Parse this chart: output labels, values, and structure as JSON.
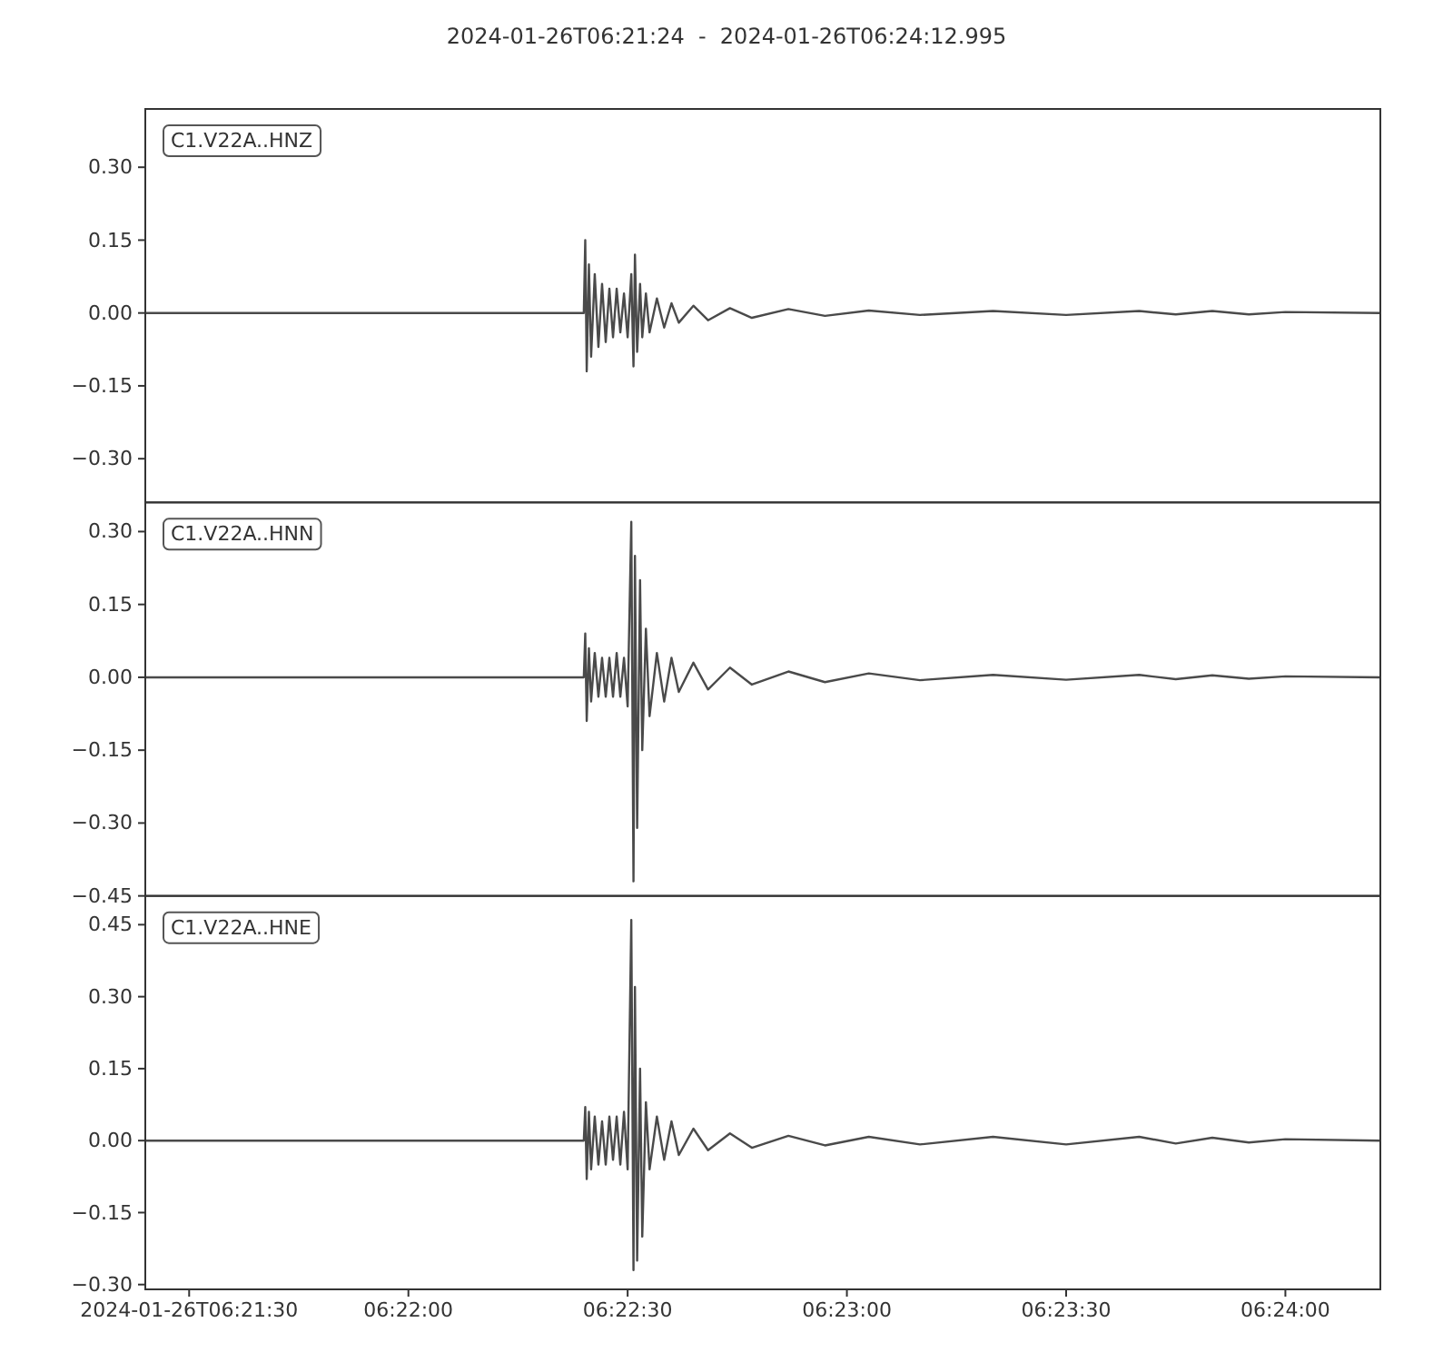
{
  "chart_data": [
    {
      "type": "line",
      "title": "2024-01-26T06:21:24  -  2024-01-26T06:24:12.995",
      "annotations": [
        "C1.V22A..HNZ"
      ],
      "tick_labels": "y",
      "x": [
        "2024-01-26T06:21:24",
        "2024-01-26T06:22:24",
        "2024-01-26T06:22:24.2",
        "2024-01-26T06:22:24.4",
        "2024-01-26T06:22:24.7",
        "2024-01-26T06:22:25",
        "2024-01-26T06:22:25.5",
        "2024-01-26T06:22:26",
        "2024-01-26T06:22:26.5",
        "2024-01-26T06:22:27",
        "2024-01-26T06:22:27.5",
        "2024-01-26T06:22:28",
        "2024-01-26T06:22:28.5",
        "2024-01-26T06:22:29",
        "2024-01-26T06:22:29.5",
        "2024-01-26T06:22:30",
        "2024-01-26T06:22:30.5",
        "2024-01-26T06:22:30.8",
        "2024-01-26T06:22:31",
        "2024-01-26T06:22:31.3",
        "2024-01-26T06:22:31.7",
        "2024-01-26T06:22:32",
        "2024-01-26T06:22:32.5",
        "2024-01-26T06:22:33",
        "2024-01-26T06:22:34",
        "2024-01-26T06:22:35",
        "2024-01-26T06:22:36",
        "2024-01-26T06:22:37",
        "2024-01-26T06:22:39",
        "2024-01-26T06:22:41",
        "2024-01-26T06:22:44",
        "2024-01-26T06:22:47",
        "2024-01-26T06:22:52",
        "2024-01-26T06:22:57",
        "2024-01-26T06:23:03",
        "2024-01-26T06:23:10",
        "2024-01-26T06:23:20",
        "2024-01-26T06:23:30",
        "2024-01-26T06:23:40",
        "2024-01-26T06:23:45",
        "2024-01-26T06:23:50",
        "2024-01-26T06:23:55",
        "2024-01-26T06:24:00",
        "2024-01-26T06:24:12.995"
      ],
      "series": [
        {
          "color": "#4a4a4a",
          "values": [
            0,
            0,
            0.15,
            -0.12,
            0.1,
            -0.09,
            0.08,
            -0.07,
            0.06,
            -0.06,
            0.05,
            -0.05,
            0.05,
            -0.04,
            0.04,
            -0.05,
            0.08,
            -0.11,
            0.12,
            -0.08,
            0.06,
            -0.05,
            0.04,
            -0.04,
            0.03,
            -0.03,
            0.02,
            -0.02,
            0.015,
            -0.015,
            0.01,
            -0.01,
            0.008,
            -0.006,
            0.005,
            -0.004,
            0.004,
            -0.004,
            0.004,
            -0.003,
            0.004,
            -0.003,
            0.002,
            0
          ]
        }
      ],
      "xlim": [
        "2024-01-26T06:21:24",
        "2024-01-26T06:24:12.995"
      ],
      "xticks": [
        {
          "value": "2024-01-26T06:21:30",
          "label": null
        },
        {
          "value": "2024-01-26T06:22:00",
          "label": null
        },
        {
          "value": "2024-01-26T06:22:30",
          "label": null
        },
        {
          "value": "2024-01-26T06:23:00",
          "label": null
        },
        {
          "value": "2024-01-26T06:23:30",
          "label": null
        },
        {
          "value": "2024-01-26T06:24:00",
          "label": null
        }
      ],
      "ylim": [
        -0.39,
        0.42
      ],
      "yticks": [
        {
          "value": -0.3,
          "label": "−0.30"
        },
        {
          "value": -0.15,
          "label": "−0.15"
        },
        {
          "value": 0,
          "label": "0.00"
        },
        {
          "value": 0.15,
          "label": "0.15"
        },
        {
          "value": 0.3,
          "label": "0.30"
        }
      ]
    },
    {
      "type": "line",
      "annotations": [
        "C1.V22A..HNN"
      ],
      "tick_labels": "y",
      "x": [
        "2024-01-26T06:21:24",
        "2024-01-26T06:22:24",
        "2024-01-26T06:22:24.2",
        "2024-01-26T06:22:24.4",
        "2024-01-26T06:22:24.7",
        "2024-01-26T06:22:25",
        "2024-01-26T06:22:25.5",
        "2024-01-26T06:22:26",
        "2024-01-26T06:22:26.5",
        "2024-01-26T06:22:27",
        "2024-01-26T06:22:27.5",
        "2024-01-26T06:22:28",
        "2024-01-26T06:22:28.5",
        "2024-01-26T06:22:29",
        "2024-01-26T06:22:29.5",
        "2024-01-26T06:22:30",
        "2024-01-26T06:22:30.5",
        "2024-01-26T06:22:30.8",
        "2024-01-26T06:22:31",
        "2024-01-26T06:22:31.3",
        "2024-01-26T06:22:31.7",
        "2024-01-26T06:22:32",
        "2024-01-26T06:22:32.5",
        "2024-01-26T06:22:33",
        "2024-01-26T06:22:34",
        "2024-01-26T06:22:35",
        "2024-01-26T06:22:36",
        "2024-01-26T06:22:37",
        "2024-01-26T06:22:39",
        "2024-01-26T06:22:41",
        "2024-01-26T06:22:44",
        "2024-01-26T06:22:47",
        "2024-01-26T06:22:52",
        "2024-01-26T06:22:57",
        "2024-01-26T06:23:03",
        "2024-01-26T06:23:10",
        "2024-01-26T06:23:20",
        "2024-01-26T06:23:30",
        "2024-01-26T06:23:40",
        "2024-01-26T06:23:45",
        "2024-01-26T06:23:50",
        "2024-01-26T06:23:55",
        "2024-01-26T06:24:00",
        "2024-01-26T06:24:12.995"
      ],
      "series": [
        {
          "color": "#4a4a4a",
          "values": [
            0,
            0,
            0.09,
            -0.09,
            0.06,
            -0.05,
            0.05,
            -0.04,
            0.04,
            -0.04,
            0.04,
            -0.04,
            0.05,
            -0.04,
            0.04,
            -0.06,
            0.32,
            -0.42,
            0.25,
            -0.31,
            0.2,
            -0.15,
            0.1,
            -0.08,
            0.05,
            -0.05,
            0.04,
            -0.03,
            0.03,
            -0.025,
            0.02,
            -0.015,
            0.012,
            -0.01,
            0.008,
            -0.006,
            0.005,
            -0.005,
            0.005,
            -0.004,
            0.004,
            -0.003,
            0.002,
            0
          ]
        }
      ],
      "xlim": [
        "2024-01-26T06:21:24",
        "2024-01-26T06:24:12.995"
      ],
      "xticks": [
        {
          "value": "2024-01-26T06:21:30",
          "label": null
        },
        {
          "value": "2024-01-26T06:22:00",
          "label": null
        },
        {
          "value": "2024-01-26T06:22:30",
          "label": null
        },
        {
          "value": "2024-01-26T06:23:00",
          "label": null
        },
        {
          "value": "2024-01-26T06:23:30",
          "label": null
        },
        {
          "value": "2024-01-26T06:24:00",
          "label": null
        }
      ],
      "ylim": [
        -0.45,
        0.36
      ],
      "yticks": [
        {
          "value": -0.45,
          "label": "−0.45"
        },
        {
          "value": -0.3,
          "label": "−0.30"
        },
        {
          "value": -0.15,
          "label": "−0.15"
        },
        {
          "value": 0,
          "label": "0.00"
        },
        {
          "value": 0.15,
          "label": "0.15"
        },
        {
          "value": 0.3,
          "label": "0.30"
        }
      ]
    },
    {
      "type": "line",
      "annotations": [
        "C1.V22A..HNE"
      ],
      "x": [
        "2024-01-26T06:21:24",
        "2024-01-26T06:22:24",
        "2024-01-26T06:22:24.2",
        "2024-01-26T06:22:24.4",
        "2024-01-26T06:22:24.7",
        "2024-01-26T06:22:25",
        "2024-01-26T06:22:25.5",
        "2024-01-26T06:22:26",
        "2024-01-26T06:22:26.5",
        "2024-01-26T06:22:27",
        "2024-01-26T06:22:27.5",
        "2024-01-26T06:22:28",
        "2024-01-26T06:22:28.5",
        "2024-01-26T06:22:29",
        "2024-01-26T06:22:29.5",
        "2024-01-26T06:22:30",
        "2024-01-26T06:22:30.5",
        "2024-01-26T06:22:30.8",
        "2024-01-26T06:22:31",
        "2024-01-26T06:22:31.3",
        "2024-01-26T06:22:31.7",
        "2024-01-26T06:22:32",
        "2024-01-26T06:22:32.5",
        "2024-01-26T06:22:33",
        "2024-01-26T06:22:34",
        "2024-01-26T06:22:35",
        "2024-01-26T06:22:36",
        "2024-01-26T06:22:37",
        "2024-01-26T06:22:39",
        "2024-01-26T06:22:41",
        "2024-01-26T06:22:44",
        "2024-01-26T06:22:47",
        "2024-01-26T06:22:52",
        "2024-01-26T06:22:57",
        "2024-01-26T06:23:03",
        "2024-01-26T06:23:10",
        "2024-01-26T06:23:20",
        "2024-01-26T06:23:30",
        "2024-01-26T06:23:40",
        "2024-01-26T06:23:45",
        "2024-01-26T06:23:50",
        "2024-01-26T06:23:55",
        "2024-01-26T06:24:00",
        "2024-01-26T06:24:12.995"
      ],
      "series": [
        {
          "color": "#4a4a4a",
          "values": [
            0,
            0,
            0.07,
            -0.08,
            0.06,
            -0.06,
            0.05,
            -0.05,
            0.04,
            -0.05,
            0.05,
            -0.04,
            0.05,
            -0.05,
            0.06,
            -0.06,
            0.46,
            -0.27,
            0.32,
            -0.25,
            0.15,
            -0.2,
            0.08,
            -0.06,
            0.05,
            -0.04,
            0.04,
            -0.03,
            0.025,
            -0.02,
            0.015,
            -0.015,
            0.01,
            -0.01,
            0.008,
            -0.008,
            0.008,
            -0.008,
            0.008,
            -0.006,
            0.006,
            -0.004,
            0.003,
            0
          ]
        }
      ],
      "xlim": [
        "2024-01-26T06:21:24",
        "2024-01-26T06:24:12.995"
      ],
      "xticks": [
        {
          "value": "2024-01-26T06:21:30",
          "label": "2024-01-26T06:21:30"
        },
        {
          "value": "2024-01-26T06:22:00",
          "label": "06:22:00"
        },
        {
          "value": "2024-01-26T06:22:30",
          "label": "06:22:30"
        },
        {
          "value": "2024-01-26T06:23:00",
          "label": "06:23:00"
        },
        {
          "value": "2024-01-26T06:23:30",
          "label": "06:23:30"
        },
        {
          "value": "2024-01-26T06:24:00",
          "label": "06:24:00"
        }
      ],
      "ylim": [
        -0.31,
        0.51
      ],
      "yticks": [
        {
          "value": -0.3,
          "label": "−0.30"
        },
        {
          "value": -0.15,
          "label": "−0.15"
        },
        {
          "value": 0,
          "label": "0.00"
        },
        {
          "value": 0.15,
          "label": "0.15"
        },
        {
          "value": 0.3,
          "label": "0.30"
        },
        {
          "value": 0.45,
          "label": "0.45"
        }
      ]
    }
  ]
}
